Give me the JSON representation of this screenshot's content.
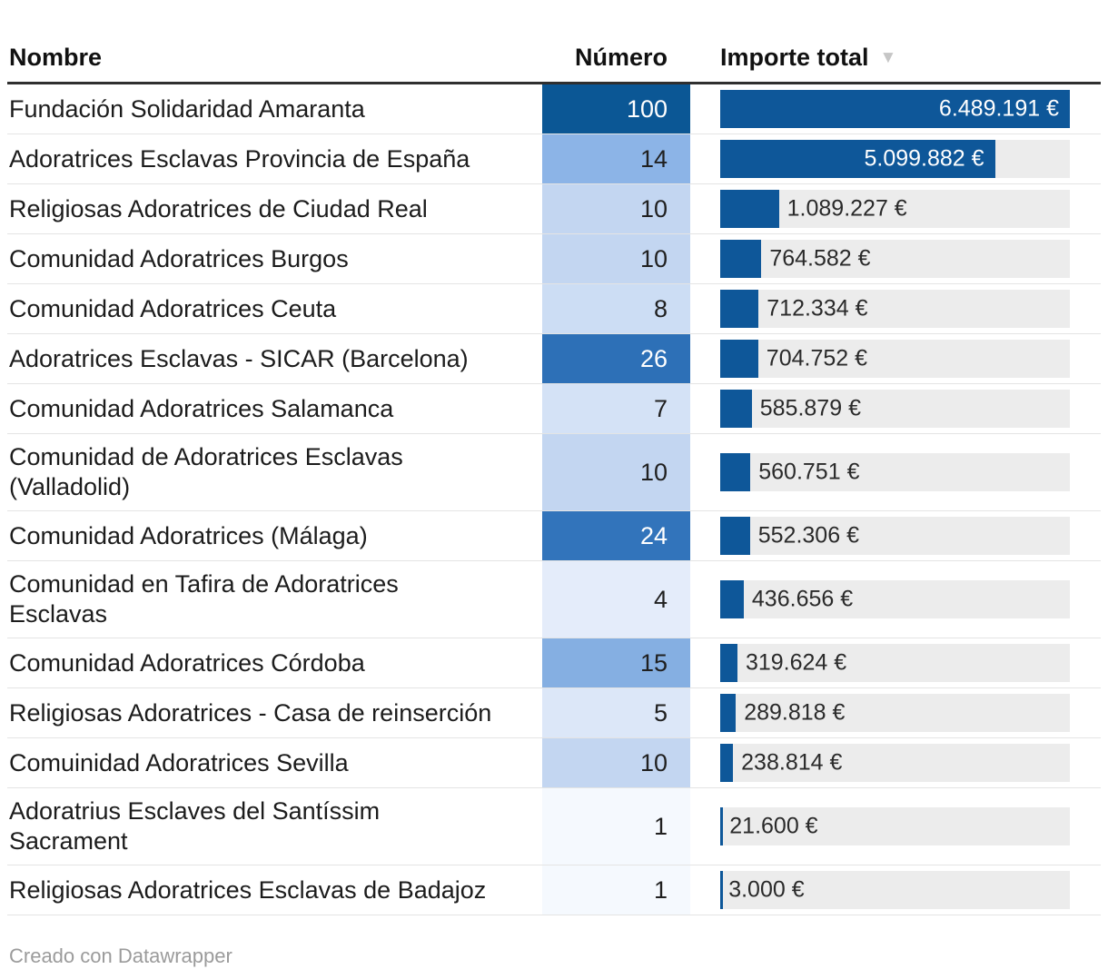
{
  "table": {
    "headers": {
      "nombre": "Nombre",
      "numero": "Número",
      "importe": "Importe total"
    },
    "sort_icon": "▼",
    "rows": [
      {
        "name": "Fundación Solidaridad Amaranta",
        "numero": "100",
        "numero_bg": "#0b5795",
        "numero_fg": "#ffffff",
        "importe": "6.489.191 €",
        "pct": 100,
        "label_inside": true
      },
      {
        "name": "Adoratrices Esclavas Provincia de España",
        "numero": "14",
        "numero_bg": "#8cb4e7",
        "numero_fg": "#202020",
        "importe": "5.099.882 €",
        "pct": 78.59,
        "label_inside": true
      },
      {
        "name": "Religiosas Adoratrices de Ciudad Real",
        "numero": "10",
        "numero_bg": "#c3d6f1",
        "numero_fg": "#202020",
        "importe": "1.089.227 €",
        "pct": 16.79,
        "label_inside": false
      },
      {
        "name": "Comunidad Adoratrices Burgos",
        "numero": "10",
        "numero_bg": "#c3d6f1",
        "numero_fg": "#202020",
        "importe": "764.582 €",
        "pct": 11.78,
        "label_inside": false
      },
      {
        "name": "Comunidad Adoratrices Ceuta",
        "numero": "8",
        "numero_bg": "#ccddf4",
        "numero_fg": "#202020",
        "importe": "712.334 €",
        "pct": 10.98,
        "label_inside": false
      },
      {
        "name": "Adoratrices Esclavas - SICAR (Barcelona)",
        "numero": "26",
        "numero_bg": "#2d70b7",
        "numero_fg": "#ffffff",
        "importe": "704.752 €",
        "pct": 10.86,
        "label_inside": false
      },
      {
        "name": "Comunidad Adoratrices Salamanca",
        "numero": "7",
        "numero_bg": "#d4e2f6",
        "numero_fg": "#202020",
        "importe": "585.879 €",
        "pct": 9.03,
        "label_inside": false
      },
      {
        "name": "Comunidad de Adoratrices Esclavas\n(Valladolid)",
        "numero": "10",
        "numero_bg": "#c3d6f1",
        "numero_fg": "#202020",
        "importe": "560.751 €",
        "pct": 8.64,
        "label_inside": false
      },
      {
        "name": "Comunidad Adoratrices (Málaga)",
        "numero": "24",
        "numero_bg": "#3274bb",
        "numero_fg": "#ffffff",
        "importe": "552.306 €",
        "pct": 8.51,
        "label_inside": false
      },
      {
        "name": "Comunidad en Tafira de Adoratrices\nEsclavas",
        "numero": "4",
        "numero_bg": "#e4ecfa",
        "numero_fg": "#202020",
        "importe": "436.656 €",
        "pct": 6.73,
        "label_inside": false
      },
      {
        "name": "Comunidad Adoratrices Córdoba",
        "numero": "15",
        "numero_bg": "#85afe2",
        "numero_fg": "#202020",
        "importe": "319.624 €",
        "pct": 4.93,
        "label_inside": false
      },
      {
        "name": "Religiosas Adoratrices - Casa de reinserción",
        "numero": "5",
        "numero_bg": "#dce7f8",
        "numero_fg": "#202020",
        "importe": "289.818 €",
        "pct": 4.47,
        "label_inside": false
      },
      {
        "name": "Comuinidad Adoratrices Sevilla",
        "numero": "10",
        "numero_bg": "#c3d6f1",
        "numero_fg": "#202020",
        "importe": "238.814 €",
        "pct": 3.68,
        "label_inside": false
      },
      {
        "name": "Adoratrius Esclaves del Santíssim\nSacrament",
        "numero": "1",
        "numero_bg": "#f5f9fe",
        "numero_fg": "#202020",
        "importe": "21.600 €",
        "pct": 0.33,
        "label_inside": false
      },
      {
        "name": "Religiosas Adoratrices Esclavas de Badajoz",
        "numero": "1",
        "numero_bg": "#f5f9fe",
        "numero_fg": "#202020",
        "importe": "3.000 €",
        "pct": 0.05,
        "label_inside": false
      }
    ]
  },
  "colors": {
    "bar": "#0e5799",
    "track": "#ececec",
    "header_border": "#2f2f2f",
    "row_border": "#e4e4e4",
    "sort_arrow": "#c6c6c6",
    "footer_text": "#9b9b9b"
  },
  "footer": {
    "attribution": "Creado con Datawrapper"
  },
  "chart_data": {
    "type": "table",
    "title": "",
    "columns": [
      "Nombre",
      "Número",
      "Importe total"
    ],
    "rows": [
      [
        "Fundación Solidaridad Amaranta",
        100,
        6489191
      ],
      [
        "Adoratrices Esclavas Provincia de España",
        14,
        5099882
      ],
      [
        "Religiosas Adoratrices de Ciudad Real",
        10,
        1089227
      ],
      [
        "Comunidad Adoratrices Burgos",
        10,
        764582
      ],
      [
        "Comunidad Adoratrices Ceuta",
        8,
        712334
      ],
      [
        "Adoratrices Esclavas - SICAR (Barcelona)",
        26,
        704752
      ],
      [
        "Comunidad Adoratrices Salamanca",
        7,
        585879
      ],
      [
        "Comunidad de Adoratrices Esclavas (Valladolid)",
        10,
        560751
      ],
      [
        "Comunidad Adoratrices (Málaga)",
        24,
        552306
      ],
      [
        "Comunidad en Tafira de Adoratrices Esclavas",
        4,
        436656
      ],
      [
        "Comunidad Adoratrices Córdoba",
        15,
        319624
      ],
      [
        "Religiosas Adoratrices - Casa de reinserción",
        5,
        289818
      ],
      [
        "Comuinidad Adoratrices Sevilla",
        10,
        238814
      ],
      [
        "Adoratrius Esclaves del Santíssim Sacrament",
        1,
        21600
      ],
      [
        "Religiosas Adoratrices Esclavas de Badajoz",
        1,
        3000
      ]
    ],
    "value_unit": "€",
    "bar_column": "Importe total",
    "bar_max": 6489191,
    "heatmap_column": "Número",
    "sorted_by": "Importe total descending"
  }
}
